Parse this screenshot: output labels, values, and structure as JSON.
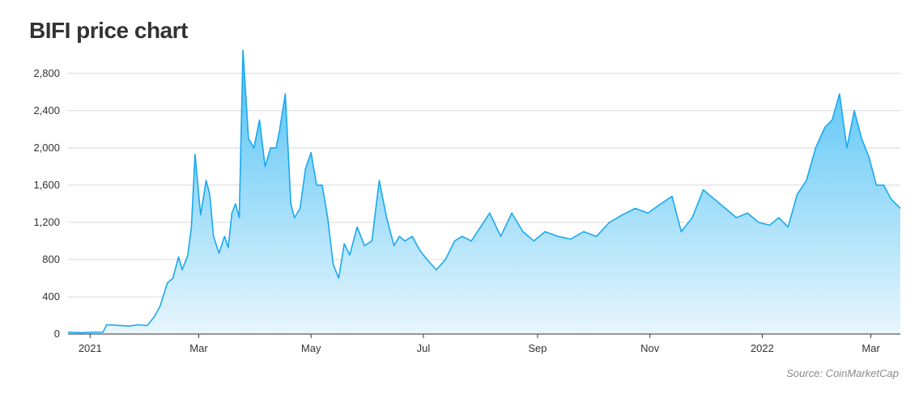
{
  "title": "BIFI price chart",
  "source": "Source: CoinMarketCap",
  "colors": {
    "line": "#19a9f0",
    "fill_top": "#4cc0f5",
    "fill_bottom": "#e8f6fd",
    "grid": "#d9d9d9",
    "axis": "#333333"
  },
  "chart_data": {
    "type": "area",
    "title": "BIFI price chart",
    "xlabel": "",
    "ylabel": "",
    "ylim": [
      0,
      3050
    ],
    "grid": true,
    "y_ticks": [
      0,
      400,
      800,
      1200,
      1600,
      2000,
      2400,
      2800
    ],
    "y_tick_labels": [
      "0",
      "400",
      "800",
      "1,200",
      "1,600",
      "2,000",
      "2,400",
      "2,800"
    ],
    "x_ticks": [
      "2021-01-01",
      "2021-03-01",
      "2021-05-01",
      "2021-07-01",
      "2021-09-01",
      "2021-11-01",
      "2022-01-01",
      "2022-03-01"
    ],
    "x_tick_labels": [
      "2021",
      "Mar",
      "May",
      "Jul",
      "Sep",
      "Nov",
      "2022",
      "Mar"
    ],
    "xlim": [
      "2020-12-20",
      "2022-03-17"
    ],
    "series": [
      {
        "x": [
          "2020-12-20",
          "2020-12-27",
          "2021-01-03",
          "2021-01-08",
          "2021-01-10",
          "2021-01-15",
          "2021-01-22",
          "2021-01-27",
          "2021-02-01",
          "2021-02-05",
          "2021-02-08",
          "2021-02-12",
          "2021-02-15",
          "2021-02-18",
          "2021-02-20",
          "2021-02-23",
          "2021-02-25",
          "2021-02-27",
          "2021-03-02",
          "2021-03-05",
          "2021-03-07",
          "2021-03-09",
          "2021-03-12",
          "2021-03-15",
          "2021-03-17",
          "2021-03-19",
          "2021-03-21",
          "2021-03-23",
          "2021-03-25",
          "2021-03-28",
          "2021-03-31",
          "2021-04-03",
          "2021-04-06",
          "2021-04-09",
          "2021-04-12",
          "2021-04-14",
          "2021-04-17",
          "2021-04-20",
          "2021-04-22",
          "2021-04-25",
          "2021-04-28",
          "2021-05-01",
          "2021-05-04",
          "2021-05-07",
          "2021-05-10",
          "2021-05-13",
          "2021-05-16",
          "2021-05-19",
          "2021-05-22",
          "2021-05-26",
          "2021-05-30",
          "2021-06-03",
          "2021-06-07",
          "2021-06-11",
          "2021-06-15",
          "2021-06-18",
          "2021-06-21",
          "2021-06-25",
          "2021-06-29",
          "2021-07-03",
          "2021-07-08",
          "2021-07-13",
          "2021-07-18",
          "2021-07-22",
          "2021-07-27",
          "2021-08-01",
          "2021-08-06",
          "2021-08-12",
          "2021-08-18",
          "2021-08-24",
          "2021-08-30",
          "2021-09-05",
          "2021-09-12",
          "2021-09-19",
          "2021-09-26",
          "2021-10-03",
          "2021-10-10",
          "2021-10-17",
          "2021-10-24",
          "2021-10-31",
          "2021-11-07",
          "2021-11-13",
          "2021-11-18",
          "2021-11-24",
          "2021-11-30",
          "2021-12-06",
          "2021-12-12",
          "2021-12-18",
          "2021-12-24",
          "2021-12-30",
          "2022-01-05",
          "2022-01-10",
          "2022-01-15",
          "2022-01-20",
          "2022-01-25",
          "2022-01-30",
          "2022-02-04",
          "2022-02-08",
          "2022-02-12",
          "2022-02-16",
          "2022-02-20",
          "2022-02-24",
          "2022-02-28",
          "2022-03-04",
          "2022-03-08",
          "2022-03-12",
          "2022-03-17"
        ],
        "values": [
          20,
          15,
          20,
          20,
          100,
          95,
          85,
          100,
          90,
          190,
          300,
          550,
          600,
          830,
          690,
          840,
          1150,
          1930,
          1280,
          1650,
          1500,
          1050,
          870,
          1050,
          930,
          1300,
          1400,
          1250,
          3050,
          2100,
          2000,
          2300,
          1800,
          2000,
          2000,
          2200,
          2580,
          1400,
          1250,
          1350,
          1780,
          1950,
          1600,
          1600,
          1250,
          750,
          600,
          970,
          850,
          1150,
          950,
          1000,
          1650,
          1250,
          950,
          1050,
          1000,
          1050,
          900,
          800,
          690,
          800,
          1000,
          1050,
          1000,
          1150,
          1300,
          1050,
          1300,
          1100,
          1000,
          1100,
          1050,
          1020,
          1100,
          1050,
          1200,
          1280,
          1350,
          1300,
          1400,
          1480,
          1100,
          1250,
          1550,
          1450,
          1350,
          1250,
          1300,
          1200,
          1170,
          1250,
          1150,
          1500,
          1650,
          2000,
          2220,
          2300,
          2580,
          2000,
          2400,
          2100,
          1900,
          1600,
          1600,
          1450,
          1350
        ]
      }
    ]
  }
}
